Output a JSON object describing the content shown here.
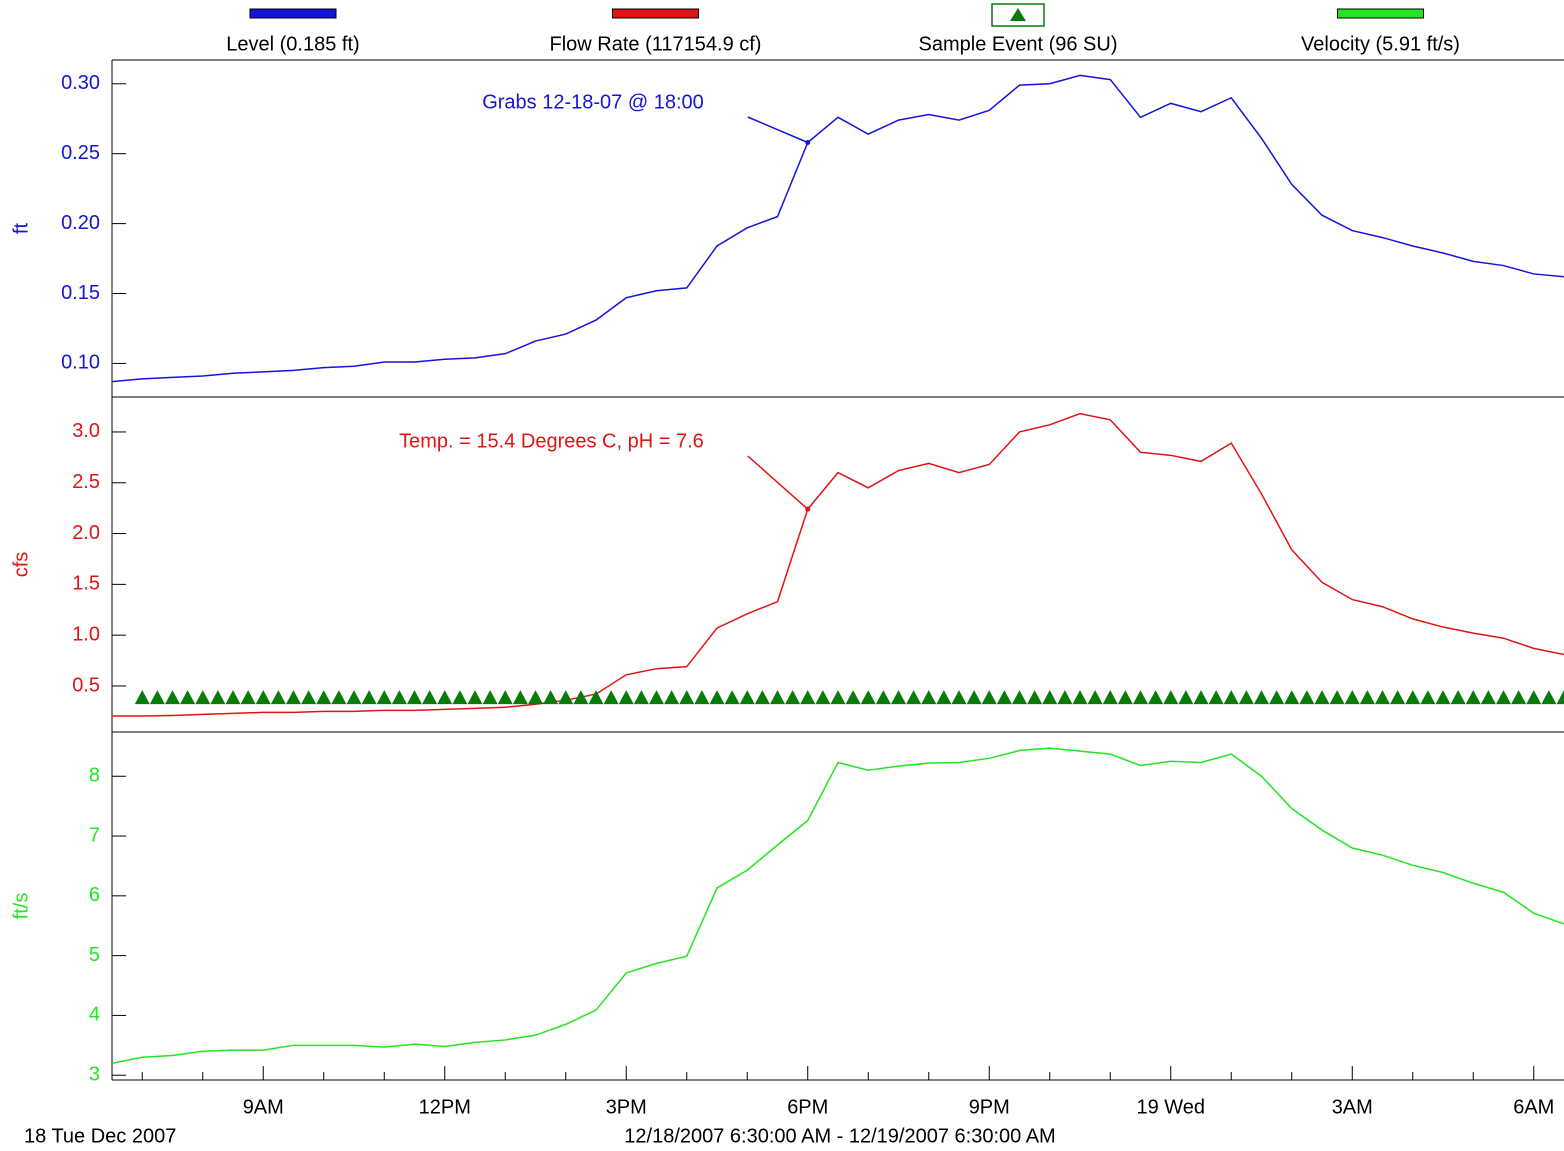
{
  "chart_data": {
    "type": "line",
    "xlim": [
      6.5,
      30.5
    ],
    "xticks": [
      {
        "value": 9,
        "label": "9AM"
      },
      {
        "value": 12,
        "label": "12PM"
      },
      {
        "value": 15,
        "label": "3PM"
      },
      {
        "value": 18,
        "label": "6PM"
      },
      {
        "value": 21,
        "label": "9PM"
      },
      {
        "value": 24,
        "label": "19 Wed"
      },
      {
        "value": 27,
        "label": "3AM"
      },
      {
        "value": 30,
        "label": "6AM"
      }
    ],
    "xminorticks": [
      7,
      8,
      10,
      11,
      13,
      14,
      16,
      17,
      19,
      20,
      22,
      23,
      25,
      26,
      28,
      29
    ],
    "x": [
      6.5,
      7,
      7.5,
      8,
      8.5,
      9,
      9.5,
      10,
      10.5,
      11,
      11.5,
      12,
      12.5,
      13,
      13.5,
      14,
      14.5,
      15,
      15.5,
      16,
      16.5,
      17,
      17.5,
      18,
      18.5,
      19,
      19.5,
      20,
      20.5,
      21,
      21.5,
      22,
      22.5,
      23,
      23.5,
      24,
      24.5,
      25,
      25.5,
      26,
      26.5,
      27,
      27.5,
      28,
      28.5,
      29,
      29.5,
      30,
      30.5
    ],
    "date_label": "18 Tue   Dec 2007",
    "range_label": "12/18/2007 6:30:00 AM - 12/19/2007 6:30:00 AM",
    "panels": [
      {
        "ylabel": "ft",
        "ylim": [
          0.076,
          0.317
        ],
        "yticks": [
          {
            "value": 0.1,
            "label": "0.10"
          },
          0.15,
          {
            "value": 0.2,
            "label": "0.20"
          },
          0.25,
          {
            "value": 0.3,
            "label": "0.30"
          }
        ],
        "annotation": {
          "text": "Grabs 12-18-07 @ 18:00",
          "x": 18
        },
        "series": [
          {
            "name": "Level (0.185 ft)",
            "color": "#1414dc",
            "values": [
              0.087,
              0.089,
              0.09,
              0.091,
              0.093,
              0.094,
              0.095,
              0.097,
              0.098,
              0.101,
              0.101,
              0.103,
              0.104,
              0.107,
              0.116,
              0.121,
              0.131,
              0.147,
              0.152,
              0.154,
              0.184,
              0.197,
              0.205,
              0.258,
              0.276,
              0.264,
              0.274,
              0.278,
              0.274,
              0.281,
              0.299,
              0.3,
              0.306,
              0.303,
              0.276,
              0.286,
              0.28,
              0.29,
              0.261,
              0.228,
              0.206,
              0.195,
              0.19,
              0.184,
              0.179,
              0.173,
              0.17,
              0.164,
              0.162
            ]
          }
        ]
      },
      {
        "ylabel": "cfs",
        "ylim": [
          0.047,
          3.344
        ],
        "yticks": [
          0.5,
          {
            "value": 1,
            "label": "1.0"
          },
          1.5,
          {
            "value": 2,
            "label": "2.0"
          },
          2.5,
          {
            "value": 3,
            "label": "3.0"
          }
        ],
        "annotation": {
          "text": "Temp. = 15.4 Degrees C, pH = 7.6",
          "x": 18
        },
        "series": [
          {
            "name": "Flow Rate (117154.9 cf)",
            "color": "#e01414",
            "values": [
              0.205,
              0.205,
              0.21,
              0.22,
              0.23,
              0.24,
              0.24,
              0.25,
              0.25,
              0.26,
              0.26,
              0.27,
              0.28,
              0.29,
              0.32,
              0.36,
              0.42,
              0.61,
              0.67,
              0.69,
              1.07,
              1.21,
              1.33,
              2.24,
              2.6,
              2.45,
              2.62,
              2.69,
              2.6,
              2.68,
              3.0,
              3.07,
              3.18,
              3.12,
              2.8,
              2.77,
              2.71,
              2.89,
              2.39,
              1.84,
              1.52,
              1.35,
              1.28,
              1.16,
              1.08,
              1.02,
              0.97,
              0.87,
              0.81
            ]
          },
          {
            "name": "Sample Event (96 SU)",
            "color": "#0a7a0a",
            "marker": "triangle",
            "x": [
              7,
              7.25,
              7.5,
              7.75,
              8,
              8.25,
              8.5,
              8.75,
              9,
              9.25,
              9.5,
              9.75,
              10,
              10.25,
              10.5,
              10.75,
              11,
              11.25,
              11.5,
              11.75,
              12,
              12.25,
              12.5,
              12.75,
              13,
              13.25,
              13.5,
              13.75,
              14,
              14.25,
              14.5,
              14.75,
              15,
              15.25,
              15.5,
              15.75,
              16,
              16.25,
              16.5,
              16.75,
              17,
              17.25,
              17.5,
              17.75,
              18,
              18.25,
              18.5,
              18.75,
              19,
              19.25,
              19.5,
              19.75,
              20,
              20.25,
              20.5,
              20.75,
              21,
              21.25,
              21.5,
              21.75,
              22,
              22.25,
              22.5,
              22.75,
              23,
              23.25,
              23.5,
              23.75,
              24,
              24.25,
              24.5,
              24.75,
              25,
              25.25,
              25.5,
              25.75,
              26,
              26.25,
              26.5,
              26.75,
              27,
              27.25,
              27.5,
              27.75,
              28,
              28.25,
              28.5,
              28.75,
              29,
              29.25,
              29.5,
              29.75,
              30,
              30.25,
              30.5
            ],
            "values": [
              0.39,
              0.39,
              0.39,
              0.39,
              0.39,
              0.39,
              0.39,
              0.39,
              0.39,
              0.39,
              0.39,
              0.39,
              0.39,
              0.39,
              0.39,
              0.39,
              0.39,
              0.39,
              0.39,
              0.39,
              0.39,
              0.39,
              0.39,
              0.39,
              0.39,
              0.39,
              0.39,
              0.39,
              0.39,
              0.39,
              0.39,
              0.39,
              0.39,
              0.39,
              0.39,
              0.39,
              0.39,
              0.39,
              0.39,
              0.39,
              0.39,
              0.39,
              0.39,
              0.39,
              0.39,
              0.39,
              0.39,
              0.39,
              0.39,
              0.39,
              0.39,
              0.39,
              0.39,
              0.39,
              0.39,
              0.39,
              0.39,
              0.39,
              0.39,
              0.39,
              0.39,
              0.39,
              0.39,
              0.39,
              0.39,
              0.39,
              0.39,
              0.39,
              0.39,
              0.39,
              0.39,
              0.39,
              0.39,
              0.39,
              0.39,
              0.39,
              0.39,
              0.39,
              0.39,
              0.39,
              0.39,
              0.39,
              0.39,
              0.39,
              0.39,
              0.39,
              0.39,
              0.39,
              0.39,
              0.39,
              0.39,
              0.39,
              0.39,
              0.39,
              0.39
            ]
          }
        ]
      },
      {
        "ylabel": "ft/s",
        "ylim": [
          2.92,
          8.74
        ],
        "yticks": [
          3,
          4,
          5,
          6,
          7,
          8
        ],
        "series": [
          {
            "name": "Velocity (5.91 ft/s)",
            "color": "#22e622",
            "values": [
              3.2,
              3.3,
              3.33,
              3.4,
              3.42,
              3.42,
              3.5,
              3.5,
              3.5,
              3.47,
              3.52,
              3.48,
              3.55,
              3.59,
              3.67,
              3.85,
              4.09,
              4.71,
              4.87,
              4.99,
              6.13,
              6.43,
              6.85,
              7.26,
              8.23,
              8.1,
              8.17,
              8.22,
              8.23,
              8.3,
              8.43,
              8.47,
              8.42,
              8.37,
              8.18,
              8.25,
              8.23,
              8.37,
              8.0,
              7.46,
              7.1,
              6.8,
              6.68,
              6.51,
              6.39,
              6.21,
              6.06,
              5.71,
              5.53
            ]
          }
        ]
      }
    ]
  }
}
